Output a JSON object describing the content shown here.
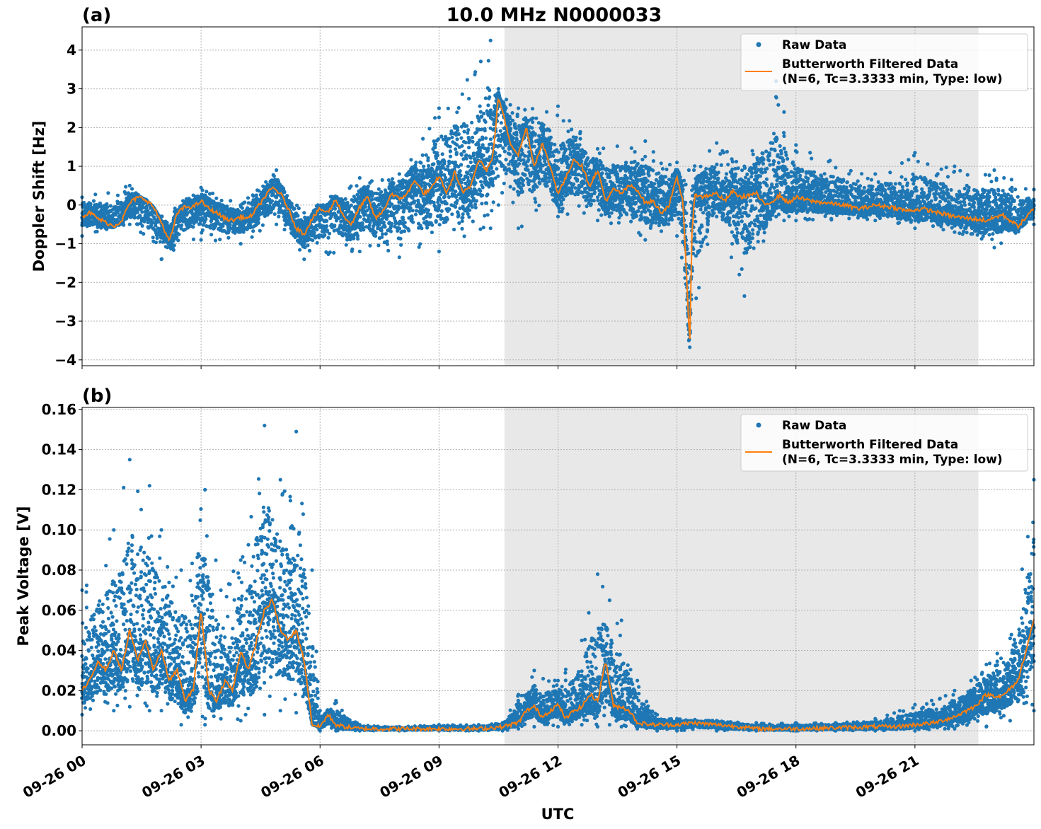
{
  "title": "10.0 MHz N0000033",
  "xlabel": "UTC",
  "x_tick_labels": [
    "09-26 00",
    "09-26 03",
    "09-26 06",
    "09-26 09",
    "09-26 12",
    "09-26 15",
    "09-26 18",
    "09-26 21"
  ],
  "colors": {
    "raw": "#1f77b4",
    "filtered": "#ff7f0e",
    "shade": "#e8e8e8",
    "grid": "#b0b0b0"
  },
  "chart_data": [
    {
      "type": "scatter",
      "panel_label": "(a)",
      "ylabel": "Doppler Shift [Hz]",
      "x_unit": "hours UTC since 09-26 00",
      "xlim": [
        0,
        24
      ],
      "ylim": [
        -4.15,
        4.6
      ],
      "y_ticks": [
        -4,
        -3,
        -2,
        -1,
        0,
        1,
        2,
        3,
        4
      ],
      "y_tick_labels": [
        "−4",
        "−3",
        "−2",
        "−1",
        "0",
        "1",
        "2",
        "3",
        "4"
      ],
      "shaded_x_range": [
        10.65,
        22.6
      ],
      "grid": true,
      "legend_position": "top-right",
      "legend": [
        "Raw Data",
        "Butterworth Filtered Data",
        "(N=6, Tc=3.3333 min, Type: low)"
      ],
      "series": [
        {
          "name": "Butterworth Filtered Data",
          "x": [
            0,
            0.2,
            0.4,
            0.6,
            0.8,
            1.0,
            1.2,
            1.4,
            1.6,
            1.8,
            2.0,
            2.2,
            2.4,
            2.6,
            2.8,
            3.0,
            3.2,
            3.4,
            3.6,
            3.8,
            4.0,
            4.2,
            4.4,
            4.6,
            4.8,
            5.0,
            5.2,
            5.4,
            5.6,
            5.8,
            6.0,
            6.2,
            6.4,
            6.6,
            6.8,
            7.0,
            7.2,
            7.4,
            7.6,
            7.8,
            8.0,
            8.2,
            8.4,
            8.6,
            8.8,
            9.0,
            9.2,
            9.4,
            9.6,
            9.8,
            10.0,
            10.2,
            10.35,
            10.5,
            10.6,
            10.8,
            11.0,
            11.2,
            11.4,
            11.6,
            11.8,
            12.0,
            12.2,
            12.4,
            12.6,
            12.8,
            13.0,
            13.2,
            13.4,
            13.6,
            13.8,
            14.0,
            14.2,
            14.4,
            14.6,
            14.8,
            15.0,
            15.15,
            15.25,
            15.32,
            15.38,
            15.45,
            15.6,
            15.8,
            16.0,
            16.2,
            16.4,
            16.6,
            16.8,
            17.0,
            17.2,
            17.4,
            17.6,
            17.8,
            18.0,
            18.4,
            18.8,
            19.2,
            19.6,
            20.0,
            20.4,
            20.8,
            21.2,
            21.6,
            22.0,
            22.4,
            22.8,
            23.2,
            23.6,
            24.0
          ],
          "y": [
            -0.3,
            -0.2,
            -0.35,
            -0.45,
            -0.55,
            -0.4,
            0.05,
            0.2,
            0.15,
            -0.05,
            -0.45,
            -0.95,
            -0.2,
            -0.05,
            -0.05,
            0.1,
            -0.1,
            -0.2,
            -0.35,
            -0.4,
            -0.3,
            -0.35,
            -0.1,
            0.2,
            0.45,
            0.3,
            -0.1,
            -0.6,
            -0.75,
            -0.35,
            -0.1,
            -0.2,
            0.15,
            -0.3,
            -0.5,
            -0.05,
            0.2,
            -0.35,
            -0.15,
            0.3,
            0.15,
            0.3,
            0.65,
            0.3,
            0.4,
            0.75,
            0.3,
            0.85,
            0.3,
            0.5,
            1.2,
            0.9,
            1.2,
            2.8,
            2.4,
            1.6,
            1.3,
            2.0,
            1.0,
            1.6,
            1.0,
            0.3,
            0.7,
            1.2,
            1.0,
            0.5,
            0.9,
            0.1,
            0.4,
            0.3,
            0.5,
            0.4,
            0.05,
            0.1,
            -0.2,
            0.0,
            0.7,
            0.1,
            -2.0,
            -3.7,
            -0.6,
            0.3,
            0.2,
            0.25,
            0.3,
            0.1,
            0.35,
            0.2,
            0.25,
            0.3,
            0.0,
            0.1,
            0.25,
            0.05,
            0.2,
            0.1,
            0.05,
            0.0,
            -0.1,
            0.0,
            -0.05,
            -0.15,
            -0.1,
            -0.2,
            -0.3,
            -0.35,
            -0.4,
            -0.25,
            -0.55,
            -0.1
          ]
        },
        {
          "name": "Raw Data",
          "spread_note_excluded": true,
          "x": [
            0,
            1.2,
            2.0,
            3.0,
            4.0,
            4.9,
            5.6,
            7.0,
            8.0,
            9.0,
            10.3,
            10.5,
            11.0,
            12.0,
            13.0,
            14.2,
            15.0,
            15.3,
            16.0,
            16.7,
            17.5,
            17.7,
            18.0,
            20.0,
            21.0,
            22.0,
            23.0,
            24.0
          ],
          "y_upper": [
            0.2,
            0.5,
            -0.3,
            0.45,
            0.0,
            0.9,
            -0.2,
            0.7,
            0.8,
            2.5,
            4.25,
            3.0,
            2.5,
            2.55,
            1.45,
            1.65,
            1.1,
            0.9,
            1.6,
            1.0,
            3.2,
            2.4,
            1.55,
            0.8,
            1.35,
            1.0,
            0.9,
            0.4
          ],
          "y_lower": [
            -0.8,
            -0.5,
            -1.4,
            -0.9,
            -1.0,
            -0.5,
            -1.4,
            -1.2,
            -1.35,
            -1.2,
            -0.6,
            0.0,
            -0.6,
            -0.3,
            -0.4,
            -0.9,
            -0.8,
            -3.5,
            -0.3,
            -2.35,
            -0.3,
            -0.4,
            -0.4,
            -0.4,
            -0.6,
            -0.7,
            -1.1,
            -0.5
          ]
        }
      ]
    },
    {
      "type": "scatter",
      "panel_label": "(b)",
      "ylabel": "Peak Voltage [V]",
      "x_unit": "hours UTC since 09-26 00",
      "xlim": [
        0,
        24
      ],
      "ylim": [
        -0.007,
        0.161
      ],
      "y_ticks": [
        0.0,
        0.02,
        0.04,
        0.06,
        0.08,
        0.1,
        0.12,
        0.14,
        0.16
      ],
      "y_tick_labels": [
        "0.00",
        "0.02",
        "0.04",
        "0.06",
        "0.08",
        "0.10",
        "0.12",
        "0.14",
        "0.16"
      ],
      "shaded_x_range": [
        10.65,
        22.6
      ],
      "grid": true,
      "legend_position": "top-right",
      "legend": [
        "Raw Data",
        "Butterworth Filtered Data",
        "(N=6, Tc=3.3333 min, Type: low)"
      ],
      "series": [
        {
          "name": "Butterworth Filtered Data",
          "x": [
            0,
            0.2,
            0.4,
            0.6,
            0.8,
            1.0,
            1.2,
            1.4,
            1.6,
            1.8,
            2.0,
            2.2,
            2.4,
            2.6,
            2.8,
            3.0,
            3.2,
            3.4,
            3.6,
            3.8,
            4.0,
            4.2,
            4.4,
            4.6,
            4.8,
            5.0,
            5.2,
            5.4,
            5.6,
            5.8,
            6.0,
            6.2,
            6.4,
            6.6,
            7.0,
            8.0,
            9.0,
            10.0,
            10.6,
            11.0,
            11.2,
            11.4,
            11.6,
            11.8,
            12.0,
            12.2,
            12.4,
            12.6,
            12.8,
            13.0,
            13.2,
            13.4,
            13.6,
            13.8,
            14.0,
            14.4,
            15.0,
            15.4,
            16.0,
            16.6,
            17.0,
            18.0,
            19.0,
            20.0,
            20.5,
            21.0,
            21.5,
            22.0,
            22.5,
            22.8,
            23.2,
            23.6,
            24.0
          ],
          "y": [
            0.02,
            0.025,
            0.035,
            0.03,
            0.04,
            0.03,
            0.05,
            0.035,
            0.045,
            0.03,
            0.04,
            0.025,
            0.03,
            0.015,
            0.02,
            0.06,
            0.02,
            0.015,
            0.025,
            0.02,
            0.04,
            0.03,
            0.045,
            0.06,
            0.065,
            0.05,
            0.045,
            0.05,
            0.035,
            0.003,
            0.002,
            0.008,
            0.003,
            0.002,
            0.001,
            0.001,
            0.001,
            0.001,
            0.002,
            0.004,
            0.01,
            0.012,
            0.007,
            0.01,
            0.013,
            0.006,
            0.01,
            0.012,
            0.018,
            0.015,
            0.035,
            0.012,
            0.012,
            0.01,
            0.004,
            0.003,
            0.003,
            0.004,
            0.003,
            0.002,
            0.001,
            0.001,
            0.0015,
            0.002,
            0.002,
            0.003,
            0.004,
            0.007,
            0.012,
            0.018,
            0.017,
            0.025,
            0.055
          ]
        },
        {
          "name": "Raw Data",
          "x": [
            0,
            0.8,
            1.2,
            1.7,
            2.0,
            2.5,
            3.1,
            3.5,
            4.0,
            4.6,
            5.0,
            5.4,
            5.8,
            6.0,
            6.4,
            7.0,
            8.0,
            9.0,
            10.0,
            10.6,
            11.0,
            11.4,
            12.0,
            12.6,
            13.0,
            13.3,
            13.6,
            14.0,
            14.5,
            15.0,
            16.0,
            17.0,
            18.0,
            19.0,
            20.0,
            21.0,
            22.0,
            22.8,
            23.4,
            24.0
          ],
          "y_upper": [
            0.07,
            0.1,
            0.135,
            0.122,
            0.1,
            0.08,
            0.12,
            0.07,
            0.085,
            0.152,
            0.125,
            0.149,
            0.08,
            0.01,
            0.015,
            0.003,
            0.002,
            0.003,
            0.003,
            0.004,
            0.018,
            0.03,
            0.025,
            0.045,
            0.078,
            0.065,
            0.055,
            0.025,
            0.008,
            0.006,
            0.005,
            0.004,
            0.004,
            0.004,
            0.006,
            0.013,
            0.02,
            0.033,
            0.046,
            0.125
          ],
          "y_lower": [
            0.008,
            0.01,
            0.012,
            0.01,
            0.01,
            0.003,
            0.003,
            0.006,
            0.005,
            0.008,
            0.01,
            0.009,
            0.005,
            0.0,
            0.0,
            0.0,
            0.0,
            0.0,
            0.0,
            0.0,
            0.001,
            0.002,
            0.002,
            0.003,
            0.002,
            0.003,
            0.002,
            0.001,
            0.0,
            0.0,
            0.0,
            0.0,
            0.0,
            0.0,
            0.0,
            0.0,
            0.001,
            0.002,
            0.005,
            0.01
          ]
        }
      ]
    }
  ]
}
